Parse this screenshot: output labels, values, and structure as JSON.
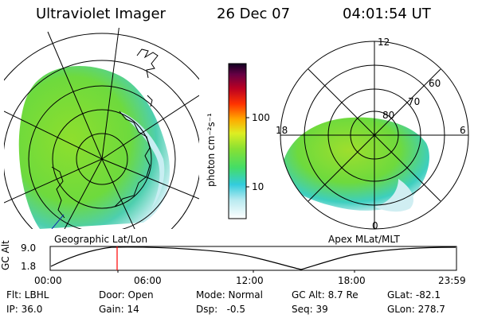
{
  "header": {
    "instrument": "Ultraviolet Imager",
    "date": "26 Dec 07",
    "time": "04:01:54 UT"
  },
  "colorbar": {
    "unit_label": "photon cm⁻²s⁻¹",
    "ticks": [
      "100",
      "10"
    ]
  },
  "left_panel": {
    "caption": "Geographic Lat/Lon"
  },
  "right_panel": {
    "caption": "Apex MLat/MLT",
    "lat_labels": [
      "80",
      "70",
      "60"
    ],
    "mlt_labels": [
      "12",
      "18",
      "6",
      "0"
    ]
  },
  "altitude_plot": {
    "ylabel": "GC Alt",
    "ymax": "9.0",
    "ymin": "1.8",
    "x_ticks": [
      "00:00",
      "06:00",
      "12:00",
      "18:00",
      "23:59"
    ],
    "marker_time": "04:01:54",
    "marker_color": "#ff0000"
  },
  "info": {
    "flt": "Flt: LBHL",
    "ip": "IP: 36.0",
    "door": "Door: Open",
    "gain": "Gain: 14",
    "mode": "Mode: Normal",
    "dsp": "Dsp:   -0.5",
    "gcalt": "GC Alt: 8.7 Re",
    "seq": "Seq: 39",
    "glat": "GLat: -82.1",
    "glon": "GLon: 278.7"
  }
}
